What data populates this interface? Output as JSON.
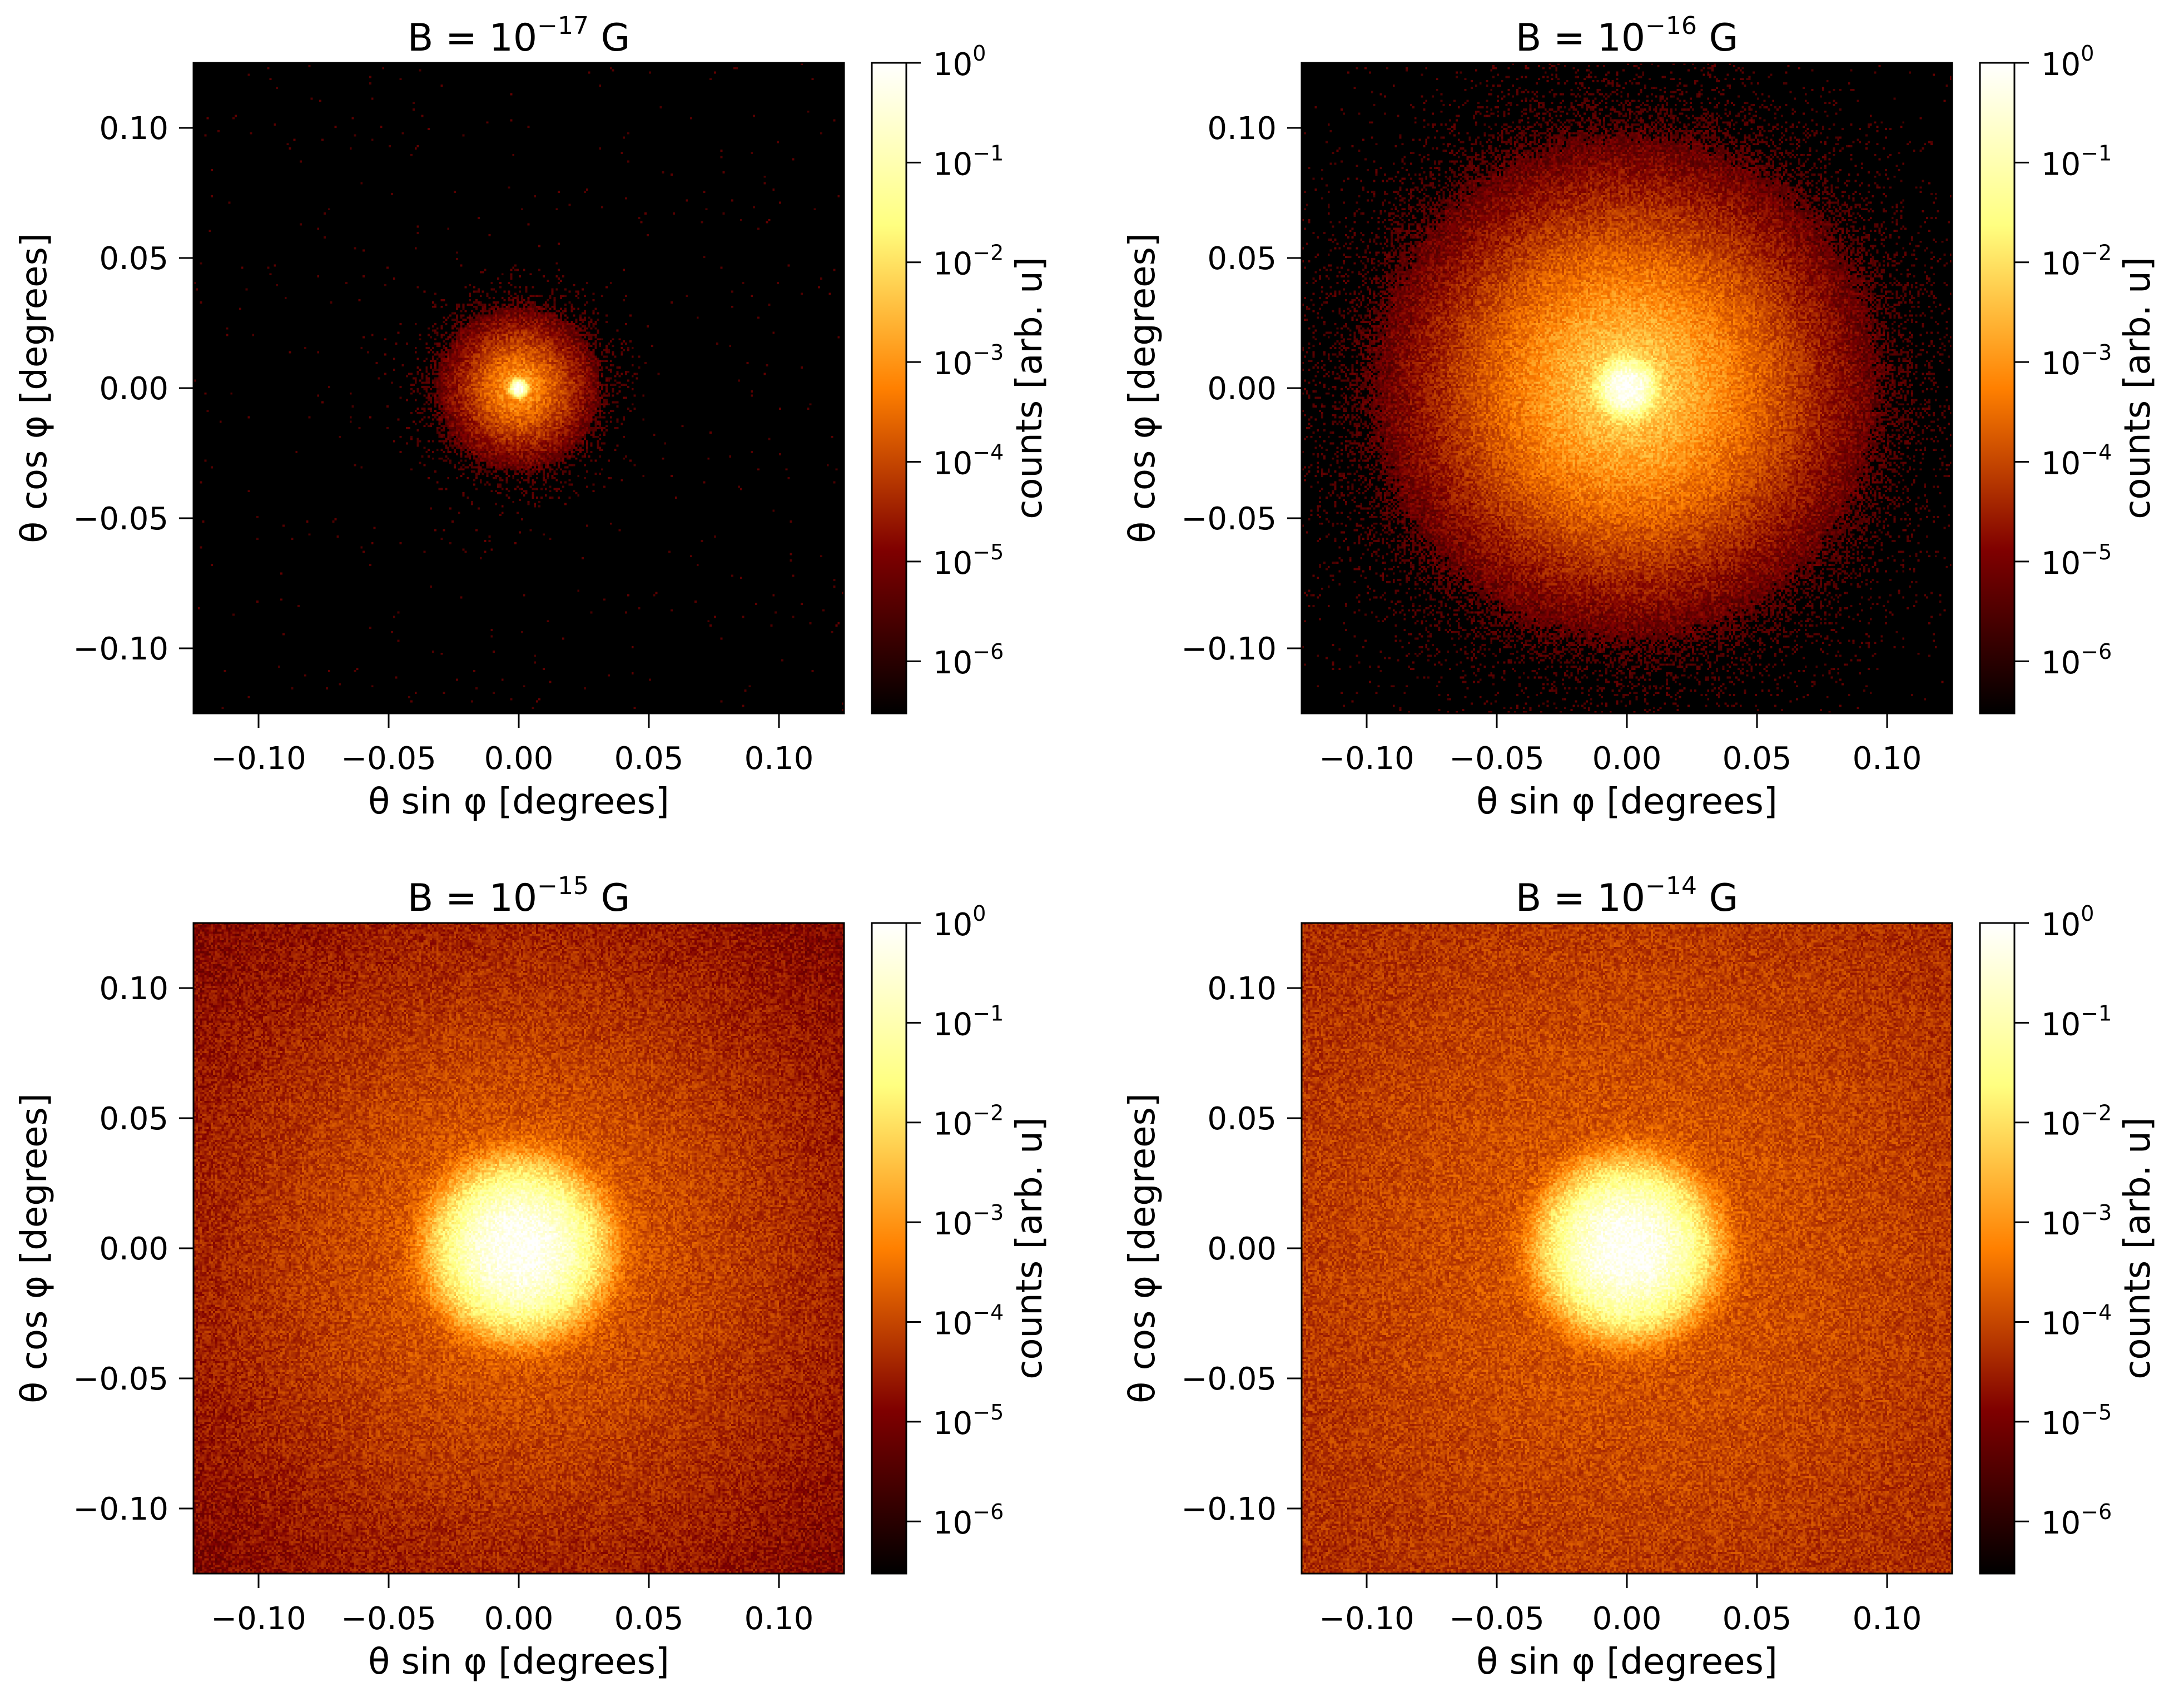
{
  "chart_data": [
    {
      "type": "heatmap",
      "title_prefix": "B = 10",
      "title_exponent": "−17",
      "title_suffix": " G",
      "xlabel": "θ sin φ  [degrees]",
      "ylabel": "θ cos φ  [degrees]",
      "xlim": [
        -0.125,
        0.125
      ],
      "ylim": [
        -0.125,
        0.125
      ],
      "x_ticks": [
        -0.1,
        -0.05,
        0.0,
        0.05,
        0.1
      ],
      "x_tick_labels": [
        "−0.10",
        "−0.05",
        "0.00",
        "0.05",
        "0.10"
      ],
      "y_ticks": [
        -0.1,
        -0.05,
        0.0,
        0.05,
        0.1
      ],
      "y_tick_labels": [
        "−0.10",
        "−0.05",
        "0.00",
        "0.05",
        "0.10"
      ],
      "colorbar": {
        "label": "counts [arb. u]",
        "scale": "log",
        "range": [
          3e-07,
          1
        ],
        "tick_exponents": [
          "0",
          "−1",
          "−2",
          "−3",
          "−4",
          "−5",
          "−6"
        ]
      },
      "profile": {
        "halo_width_deg": 0.005,
        "halo_log_peak": -2.6,
        "core_width_deg": 0.0012,
        "background_log": -7.5
      }
    },
    {
      "type": "heatmap",
      "title_prefix": "B = 10",
      "title_exponent": "−16",
      "title_suffix": " G",
      "xlabel": "θ sin φ  [degrees]",
      "ylabel": "θ cos φ  [degrees]",
      "xlim": [
        -0.125,
        0.125
      ],
      "ylim": [
        -0.125,
        0.125
      ],
      "x_ticks": [
        -0.1,
        -0.05,
        0.0,
        0.05,
        0.1
      ],
      "x_tick_labels": [
        "−0.10",
        "−0.05",
        "0.00",
        "0.05",
        "0.10"
      ],
      "y_ticks": [
        -0.1,
        -0.05,
        0.0,
        0.05,
        0.1
      ],
      "y_tick_labels": [
        "−0.10",
        "−0.05",
        "0.00",
        "0.05",
        "0.10"
      ],
      "colorbar": {
        "label": "counts [arb. u]",
        "scale": "log",
        "range": [
          3e-07,
          1
        ],
        "tick_exponents": [
          "0",
          "−1",
          "−2",
          "−3",
          "−4",
          "−5",
          "−6"
        ]
      },
      "profile": {
        "halo_width_deg": 0.012,
        "halo_log_peak": -1.8,
        "core_width_deg": 0.004,
        "background_log": -7.3
      }
    },
    {
      "type": "heatmap",
      "title_prefix": "B = 10",
      "title_exponent": "−15",
      "title_suffix": " G",
      "xlabel": "θ sin φ  [degrees]",
      "ylabel": "θ cos φ  [degrees]",
      "xlim": [
        -0.125,
        0.125
      ],
      "ylim": [
        -0.125,
        0.125
      ],
      "x_ticks": [
        -0.1,
        -0.05,
        0.0,
        0.05,
        0.1
      ],
      "x_tick_labels": [
        "−0.10",
        "−0.05",
        "0.00",
        "0.05",
        "0.10"
      ],
      "y_ticks": [
        -0.1,
        -0.05,
        0.0,
        0.05,
        0.1
      ],
      "y_tick_labels": [
        "−0.10",
        "−0.05",
        "0.00",
        "0.05",
        "0.10"
      ],
      "colorbar": {
        "label": "counts [arb. u]",
        "scale": "log",
        "range": [
          3e-07,
          1
        ],
        "tick_exponents": [
          "0",
          "−1",
          "−2",
          "−3",
          "−4",
          "−5",
          "−6"
        ]
      },
      "profile": {
        "halo_width_deg": 0.05,
        "halo_log_peak": -3.4,
        "core_width_deg": 0.01,
        "background_log": -6.4
      }
    },
    {
      "type": "heatmap",
      "title_prefix": "B = 10",
      "title_exponent": "−14",
      "title_suffix": " G",
      "xlabel": "θ sin φ  [degrees]",
      "ylabel": "θ cos φ  [degrees]",
      "xlim": [
        -0.125,
        0.125
      ],
      "ylim": [
        -0.125,
        0.125
      ],
      "x_ticks": [
        -0.1,
        -0.05,
        0.0,
        0.05,
        0.1
      ],
      "x_tick_labels": [
        "−0.10",
        "−0.05",
        "0.00",
        "0.05",
        "0.10"
      ],
      "y_ticks": [
        -0.1,
        -0.05,
        0.0,
        0.05,
        0.1
      ],
      "y_tick_labels": [
        "−0.10",
        "−0.05",
        "0.00",
        "0.05",
        "0.10"
      ],
      "colorbar": {
        "label": "counts [arb. u]",
        "scale": "log",
        "range": [
          3e-07,
          1
        ],
        "tick_exponents": [
          "0",
          "−1",
          "−2",
          "−3",
          "−4",
          "−5",
          "−6"
        ]
      },
      "profile": {
        "halo_width_deg": 0.09,
        "halo_log_peak": -3.6,
        "core_width_deg": 0.01,
        "background_log": -5.1
      }
    }
  ]
}
